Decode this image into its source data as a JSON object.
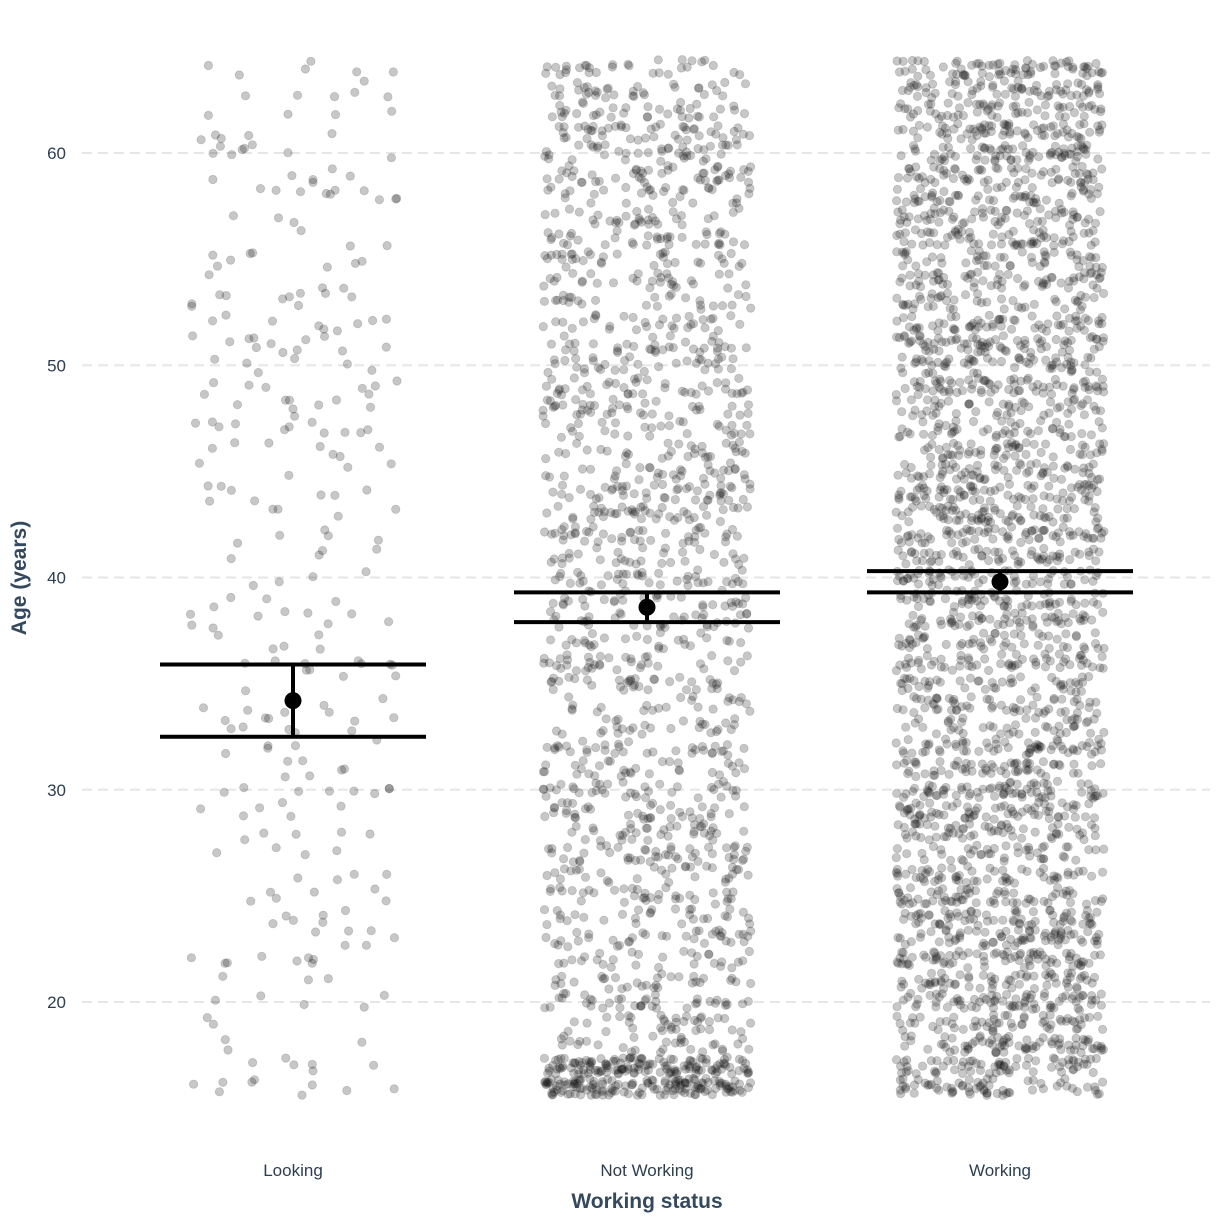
{
  "chart_data": {
    "type": "scatter",
    "title": "",
    "xlabel": "Working status",
    "ylabel": "Age (years)",
    "categories": [
      "Looking",
      "Not Working",
      "Working"
    ],
    "ylim": [
      15,
      65
    ],
    "yticks": [
      20,
      30,
      40,
      50,
      60
    ],
    "grid": "horizontal dashed",
    "legend": "none",
    "point_color": "#000000",
    "point_opacity": 0.22,
    "summary_color": "#000000",
    "groups": [
      {
        "category": "Looking",
        "n_points": 300,
        "age_range": [
          16,
          64
        ],
        "mean": 34.2,
        "ci_lower": 32.5,
        "ci_upper": 35.9
      },
      {
        "category": "Not Working",
        "n_points": 1900,
        "age_range": [
          16,
          64
        ],
        "mean": 38.6,
        "ci_lower": 37.9,
        "ci_upper": 39.3
      },
      {
        "category": "Working",
        "n_points": 3000,
        "age_range": [
          16,
          64
        ],
        "mean": 39.8,
        "ci_lower": 39.3,
        "ci_upper": 40.3
      }
    ]
  }
}
